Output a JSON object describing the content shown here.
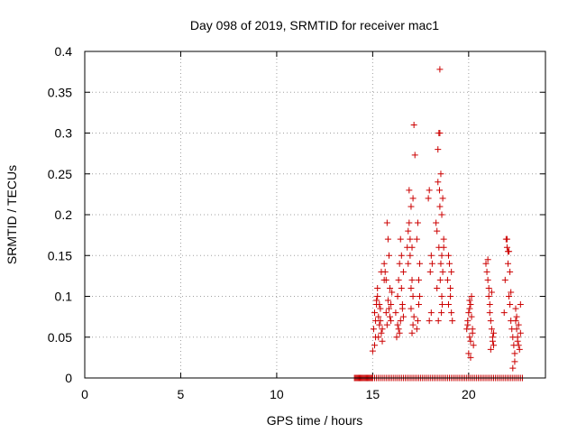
{
  "chart_data": {
    "type": "scatter",
    "title": "Day 098 of 2019, SRMTID for receiver mac1",
    "xlabel": "GPS time / hours",
    "ylabel": "SRMTID / TECUs",
    "xlim": [
      0,
      24
    ],
    "ylim": [
      0,
      0.4
    ],
    "xticks": [
      0,
      5,
      10,
      15,
      20
    ],
    "yticks": [
      0,
      0.05,
      0.1,
      0.15,
      0.2,
      0.25,
      0.3,
      0.35,
      0.4
    ],
    "ytick_labels": [
      "0",
      "0.05",
      "0.1",
      "0.15",
      "0.2",
      "0.25",
      "0.3",
      "0.35",
      "0.4"
    ],
    "xtick_labels": [
      "0",
      "5",
      "10",
      "15",
      "20"
    ],
    "grid": true,
    "marker": "plus",
    "color": "#cc0000",
    "series": [
      {
        "name": "SRMTID",
        "x": [
          14.05,
          14.1,
          14.15,
          14.2,
          14.25,
          14.3,
          14.35,
          14.4,
          14.45,
          14.5,
          14.55,
          14.6,
          14.65,
          14.7,
          14.75,
          14.8,
          14.85,
          14.9,
          14.95,
          15.0,
          15.1,
          15.2,
          15.3,
          15.4,
          15.5,
          15.6,
          15.7,
          15.8,
          15.9,
          16.0,
          16.1,
          16.2,
          16.3,
          16.4,
          16.5,
          16.6,
          16.7,
          16.8,
          16.9,
          17.0,
          17.1,
          17.2,
          17.3,
          17.4,
          17.5,
          17.6,
          17.7,
          17.8,
          17.9,
          18.0,
          18.1,
          18.2,
          18.3,
          18.4,
          18.5,
          18.6,
          18.7,
          18.8,
          18.9,
          19.0,
          19.1,
          19.2,
          19.3,
          19.4,
          19.5,
          19.6,
          19.7,
          19.8,
          19.9,
          20.0,
          20.1,
          20.2,
          20.3,
          20.4,
          20.5,
          20.6,
          20.7,
          20.8,
          20.9,
          21.0,
          21.1,
          21.2,
          21.3,
          21.4,
          21.5,
          21.6,
          21.7,
          21.8,
          21.9,
          22.0,
          22.1,
          22.2,
          22.3,
          22.4,
          22.5,
          22.6,
          22.7,
          22.8,
          15.0,
          15.05,
          15.1,
          15.15,
          15.2,
          15.25,
          15.3,
          15.35,
          15.4,
          15.45,
          15.5,
          15.3,
          15.2,
          15.1,
          15.4,
          15.5,
          15.35,
          15.25,
          15.15,
          15.45,
          15.6,
          15.7,
          15.75,
          15.8,
          15.85,
          15.9,
          15.95,
          16.0,
          15.65,
          15.7,
          15.8,
          15.9,
          15.75,
          15.85,
          15.6,
          15.95,
          16.2,
          16.3,
          16.35,
          16.4,
          16.45,
          16.5,
          16.55,
          16.6,
          16.3,
          16.4,
          16.5,
          16.6,
          16.25,
          16.35,
          16.45,
          16.55,
          16.8,
          16.85,
          16.9,
          16.95,
          17.0,
          17.05,
          17.1,
          17.15,
          17.2,
          16.9,
          17.0,
          17.1,
          16.85,
          16.95,
          17.05,
          17.15,
          17.0,
          17.1,
          17.05,
          17.3,
          17.35,
          17.4,
          17.45,
          17.3,
          17.4,
          17.35,
          17.45,
          17.9,
          17.95,
          18.0,
          18.05,
          18.1,
          17.95,
          18.05,
          18.3,
          18.35,
          18.4,
          18.45,
          18.5,
          18.55,
          18.6,
          18.65,
          18.7,
          18.4,
          18.5,
          18.6,
          18.45,
          18.55,
          18.5,
          18.48,
          18.52,
          18.6,
          18.62,
          18.58,
          18.35,
          18.65,
          18.7,
          18.42,
          18.9,
          18.95,
          19.0,
          19.05,
          19.1,
          19.15,
          18.95,
          19.05,
          19.1,
          19.9,
          19.95,
          20.0,
          20.05,
          20.1,
          20.15,
          20.2,
          20.25,
          20.0,
          20.1,
          20.05,
          20.15,
          20.2,
          20.1,
          19.95,
          20.05,
          20.9,
          20.95,
          21.0,
          21.05,
          21.1,
          21.15,
          21.2,
          21.25,
          21.3,
          21.0,
          21.1,
          21.05,
          21.2,
          21.15,
          21.25,
          21.3,
          21.85,
          21.9,
          21.95,
          22.0,
          22.05,
          22.1,
          22.15,
          22.2,
          22.25,
          22.3,
          22.35,
          22.4,
          22.45,
          22.5,
          22.55,
          22.6,
          22.65,
          22.7,
          22.0,
          22.1,
          22.05,
          22.15,
          22.3,
          22.4,
          22.5,
          22.6,
          22.7,
          22.2,
          22.45,
          22.55
        ],
        "y": [
          0,
          0,
          0,
          0,
          0,
          0,
          0,
          0,
          0,
          0,
          0,
          0,
          0,
          0,
          0,
          0,
          0,
          0,
          0,
          0,
          0,
          0,
          0,
          0,
          0,
          0,
          0,
          0,
          0,
          0,
          0,
          0,
          0,
          0,
          0,
          0,
          0,
          0,
          0,
          0,
          0,
          0,
          0,
          0,
          0,
          0,
          0,
          0,
          0,
          0,
          0,
          0,
          0,
          0,
          0,
          0,
          0,
          0,
          0,
          0,
          0,
          0,
          0,
          0,
          0,
          0,
          0,
          0,
          0,
          0,
          0,
          0,
          0,
          0,
          0,
          0,
          0,
          0,
          0,
          0,
          0,
          0,
          0,
          0,
          0,
          0,
          0,
          0,
          0,
          0,
          0,
          0,
          0,
          0,
          0,
          0,
          0,
          0,
          0.033,
          0.06,
          0.08,
          0.07,
          0.09,
          0.1,
          0.05,
          0.065,
          0.085,
          0.055,
          0.045,
          0.075,
          0.095,
          0.04,
          0.07,
          0.06,
          0.09,
          0.11,
          0.05,
          0.13,
          0.14,
          0.12,
          0.19,
          0.17,
          0.15,
          0.11,
          0.09,
          0.105,
          0.13,
          0.08,
          0.095,
          0.075,
          0.065,
          0.085,
          0.12,
          0.07,
          0.08,
          0.1,
          0.12,
          0.14,
          0.17,
          0.11,
          0.09,
          0.075,
          0.065,
          0.055,
          0.15,
          0.13,
          0.05,
          0.06,
          0.07,
          0.085,
          0.16,
          0.18,
          0.19,
          0.17,
          0.11,
          0.12,
          0.22,
          0.31,
          0.273,
          0.23,
          0.21,
          0.1,
          0.14,
          0.15,
          0.16,
          0.075,
          0.085,
          0.065,
          0.055,
          0.17,
          0.19,
          0.12,
          0.14,
          0.06,
          0.09,
          0.07,
          0.1,
          0.22,
          0.23,
          0.13,
          0.15,
          0.14,
          0.07,
          0.08,
          0.19,
          0.18,
          0.24,
          0.3,
          0.378,
          0.25,
          0.2,
          0.22,
          0.17,
          0.28,
          0.3,
          0.15,
          0.16,
          0.14,
          0.21,
          0.23,
          0.12,
          0.1,
          0.09,
          0.08,
          0.11,
          0.13,
          0.16,
          0.07,
          0.12,
          0.15,
          0.14,
          0.1,
          0.08,
          0.07,
          0.09,
          0.11,
          0.13,
          0.06,
          0.07,
          0.08,
          0.05,
          0.09,
          0.1,
          0.06,
          0.04,
          0.03,
          0.025,
          0.085,
          0.075,
          0.055,
          0.045,
          0.065,
          0.095,
          0.14,
          0.13,
          0.12,
          0.1,
          0.09,
          0.07,
          0.06,
          0.05,
          0.04,
          0.145,
          0.08,
          0.11,
          0.105,
          0.035,
          0.045,
          0.055,
          0.08,
          0.12,
          0.17,
          0.16,
          0.14,
          0.1,
          0.09,
          0.07,
          0.06,
          0.05,
          0.04,
          0.03,
          0.07,
          0.06,
          0.05,
          0.04,
          0.035,
          0.09,
          0.17,
          0.155,
          0.155,
          0.13,
          0.012,
          0.02,
          0.075,
          0.065,
          0.055,
          0.105,
          0.085,
          0.045
        ]
      }
    ]
  }
}
